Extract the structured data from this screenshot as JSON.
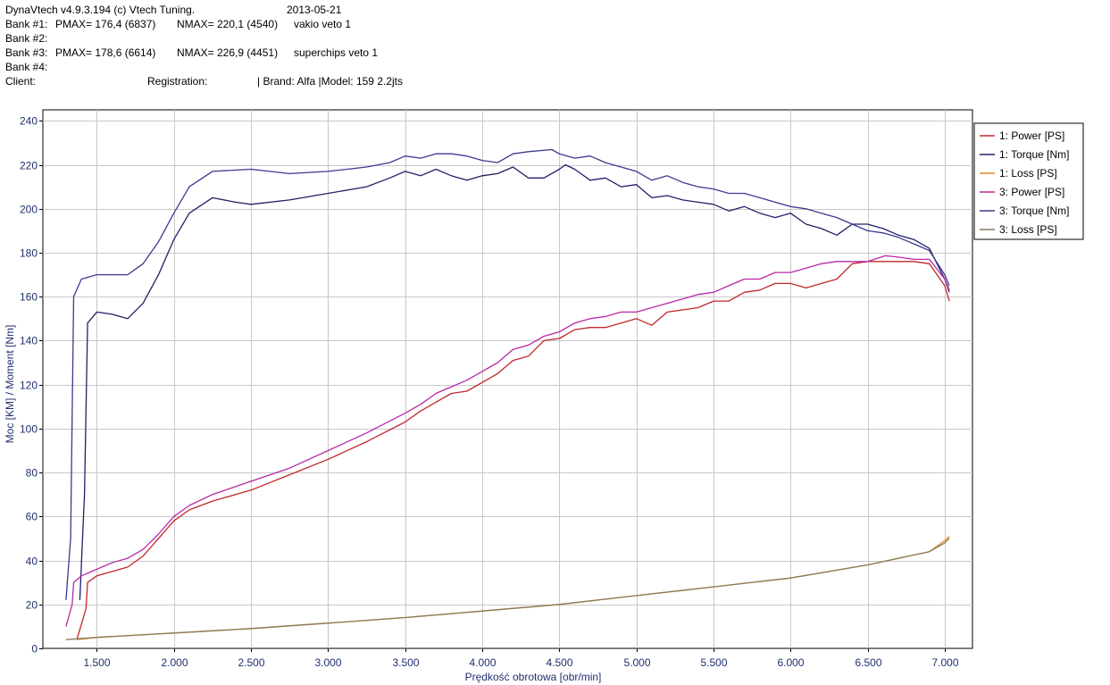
{
  "header": {
    "app": "DynaVtech v4.9.3.194 (c) Vtech Tuning.",
    "date": "2013-05-21",
    "bank1_label": "Bank #1:",
    "bank1_pmax": "PMAX= 176,4 (6837)",
    "bank1_nmax": "NMAX= 220,1 (4540)",
    "bank1_desc": "vakio veto 1",
    "bank2_label": "Bank #2:",
    "bank3_label": "Bank #3:",
    "bank3_pmax": "PMAX= 178,6 (6614)",
    "bank3_nmax": "NMAX= 226,9 (4451)",
    "bank3_desc": "superchips veto 1",
    "bank4_label": "Bank #4:",
    "client": "Client:",
    "registration": "Registration:",
    "brand_model": "| Brand: Alfa |Model: 159 2.2jts"
  },
  "chart_data": {
    "type": "line",
    "xlabel": "Prędkość obrotowa [obr/min]",
    "ylabel": "Moc [KM] / Moment [Nm]",
    "xlim": [
      1150,
      7180
    ],
    "ylim": [
      0,
      245
    ],
    "xticks": [
      1500,
      2000,
      2500,
      3000,
      3500,
      4000,
      4500,
      5000,
      5500,
      6000,
      6500,
      7000
    ],
    "xtick_labels": [
      "1.500",
      "2.000",
      "2.500",
      "3.000",
      "3.500",
      "4.000",
      "4.500",
      "5.000",
      "5.500",
      "6.000",
      "6.500",
      "7.000"
    ],
    "yticks": [
      0,
      20,
      40,
      60,
      80,
      100,
      120,
      140,
      160,
      180,
      200,
      220,
      240
    ],
    "ytick_labels": [
      "0",
      "20",
      "40",
      "60",
      "80",
      "100",
      "120",
      "140",
      "160",
      "180",
      "200",
      "220",
      "240"
    ],
    "grid": true,
    "legend_position": "right",
    "series": [
      {
        "name": "1: Power [PS]",
        "color": "#c0282a",
        "points": [
          [
            1370,
            4
          ],
          [
            1430,
            18
          ],
          [
            1440,
            30
          ],
          [
            1500,
            33
          ],
          [
            1600,
            35
          ],
          [
            1700,
            37
          ],
          [
            1800,
            42
          ],
          [
            1900,
            50
          ],
          [
            2000,
            58
          ],
          [
            2100,
            63
          ],
          [
            2250,
            67
          ],
          [
            2500,
            72
          ],
          [
            2750,
            79
          ],
          [
            3000,
            86
          ],
          [
            3250,
            94
          ],
          [
            3500,
            103
          ],
          [
            3600,
            108
          ],
          [
            3700,
            112
          ],
          [
            3800,
            116
          ],
          [
            3900,
            117
          ],
          [
            4000,
            121
          ],
          [
            4100,
            125
          ],
          [
            4200,
            131
          ],
          [
            4300,
            133
          ],
          [
            4400,
            140
          ],
          [
            4500,
            141
          ],
          [
            4600,
            145
          ],
          [
            4700,
            146
          ],
          [
            4800,
            146
          ],
          [
            4900,
            148
          ],
          [
            5000,
            150
          ],
          [
            5100,
            147
          ],
          [
            5200,
            153
          ],
          [
            5300,
            154
          ],
          [
            5400,
            155
          ],
          [
            5500,
            158
          ],
          [
            5600,
            158
          ],
          [
            5700,
            162
          ],
          [
            5800,
            163
          ],
          [
            5900,
            166
          ],
          [
            6000,
            166
          ],
          [
            6100,
            164
          ],
          [
            6200,
            166
          ],
          [
            6300,
            168
          ],
          [
            6400,
            175
          ],
          [
            6500,
            176
          ],
          [
            6600,
            176
          ],
          [
            6700,
            176
          ],
          [
            6800,
            176
          ],
          [
            6900,
            175
          ],
          [
            7000,
            165
          ],
          [
            7030,
            158
          ]
        ]
      },
      {
        "name": "1: Torque [Nm]",
        "color": "#20206a",
        "points": [
          [
            1390,
            22
          ],
          [
            1420,
            70
          ],
          [
            1440,
            148
          ],
          [
            1500,
            153
          ],
          [
            1600,
            152
          ],
          [
            1700,
            150
          ],
          [
            1800,
            157
          ],
          [
            1900,
            170
          ],
          [
            2000,
            186
          ],
          [
            2100,
            198
          ],
          [
            2250,
            205
          ],
          [
            2400,
            203
          ],
          [
            2500,
            202
          ],
          [
            2750,
            204
          ],
          [
            3000,
            207
          ],
          [
            3250,
            210
          ],
          [
            3400,
            214
          ],
          [
            3500,
            217
          ],
          [
            3600,
            215
          ],
          [
            3700,
            218
          ],
          [
            3800,
            215
          ],
          [
            3900,
            213
          ],
          [
            4000,
            215
          ],
          [
            4100,
            216
          ],
          [
            4200,
            219
          ],
          [
            4300,
            214
          ],
          [
            4400,
            214
          ],
          [
            4500,
            218
          ],
          [
            4540,
            220
          ],
          [
            4600,
            218
          ],
          [
            4700,
            213
          ],
          [
            4800,
            214
          ],
          [
            4900,
            210
          ],
          [
            5000,
            211
          ],
          [
            5100,
            205
          ],
          [
            5200,
            206
          ],
          [
            5300,
            204
          ],
          [
            5400,
            203
          ],
          [
            5500,
            202
          ],
          [
            5600,
            199
          ],
          [
            5700,
            201
          ],
          [
            5800,
            198
          ],
          [
            5900,
            196
          ],
          [
            6000,
            198
          ],
          [
            6100,
            193
          ],
          [
            6200,
            191
          ],
          [
            6300,
            188
          ],
          [
            6400,
            193
          ],
          [
            6500,
            193
          ],
          [
            6600,
            191
          ],
          [
            6700,
            188
          ],
          [
            6800,
            186
          ],
          [
            6900,
            182
          ],
          [
            7000,
            168
          ],
          [
            7030,
            162
          ]
        ]
      },
      {
        "name": "1: Loss [PS]",
        "color": "#e08a2a",
        "points": [
          [
            1370,
            4
          ],
          [
            1500,
            5
          ],
          [
            2000,
            7
          ],
          [
            2500,
            9
          ],
          [
            3000,
            11.5
          ],
          [
            3500,
            14
          ],
          [
            4000,
            17
          ],
          [
            4500,
            20
          ],
          [
            5000,
            24
          ],
          [
            5500,
            28
          ],
          [
            6000,
            32
          ],
          [
            6500,
            38
          ],
          [
            6900,
            44
          ],
          [
            7000,
            49
          ],
          [
            7030,
            51
          ]
        ]
      },
      {
        "name": "3: Power [PS]",
        "color": "#b828a8",
        "points": [
          [
            1300,
            10
          ],
          [
            1340,
            20
          ],
          [
            1350,
            30
          ],
          [
            1400,
            33
          ],
          [
            1500,
            36
          ],
          [
            1600,
            39
          ],
          [
            1700,
            41
          ],
          [
            1800,
            45
          ],
          [
            1900,
            52
          ],
          [
            2000,
            60
          ],
          [
            2100,
            65
          ],
          [
            2250,
            70
          ],
          [
            2500,
            76
          ],
          [
            2750,
            82
          ],
          [
            3000,
            90
          ],
          [
            3250,
            98
          ],
          [
            3500,
            107
          ],
          [
            3600,
            111
          ],
          [
            3700,
            116
          ],
          [
            3800,
            119
          ],
          [
            3900,
            122
          ],
          [
            4000,
            126
          ],
          [
            4100,
            130
          ],
          [
            4200,
            136
          ],
          [
            4300,
            138
          ],
          [
            4400,
            142
          ],
          [
            4500,
            144
          ],
          [
            4600,
            148
          ],
          [
            4700,
            150
          ],
          [
            4800,
            151
          ],
          [
            4900,
            153
          ],
          [
            5000,
            153
          ],
          [
            5100,
            155
          ],
          [
            5200,
            157
          ],
          [
            5300,
            159
          ],
          [
            5400,
            161
          ],
          [
            5500,
            162
          ],
          [
            5600,
            165
          ],
          [
            5700,
            168
          ],
          [
            5800,
            168
          ],
          [
            5900,
            171
          ],
          [
            6000,
            171
          ],
          [
            6100,
            173
          ],
          [
            6200,
            175
          ],
          [
            6300,
            176
          ],
          [
            6400,
            176
          ],
          [
            6500,
            176
          ],
          [
            6614,
            178.6
          ],
          [
            6700,
            178
          ],
          [
            6800,
            177
          ],
          [
            6900,
            177
          ],
          [
            7000,
            168
          ],
          [
            7030,
            163
          ]
        ]
      },
      {
        "name": "3: Torque [Nm]",
        "color": "#3a3a90",
        "points": [
          [
            1300,
            22
          ],
          [
            1330,
            50
          ],
          [
            1350,
            160
          ],
          [
            1400,
            168
          ],
          [
            1500,
            170
          ],
          [
            1600,
            170
          ],
          [
            1700,
            170
          ],
          [
            1800,
            175
          ],
          [
            1900,
            185
          ],
          [
            2000,
            198
          ],
          [
            2100,
            210
          ],
          [
            2250,
            217
          ],
          [
            2500,
            218
          ],
          [
            2750,
            216
          ],
          [
            3000,
            217
          ],
          [
            3250,
            219
          ],
          [
            3400,
            221
          ],
          [
            3500,
            224
          ],
          [
            3600,
            223
          ],
          [
            3700,
            225
          ],
          [
            3800,
            225
          ],
          [
            3900,
            224
          ],
          [
            4000,
            222
          ],
          [
            4100,
            221
          ],
          [
            4200,
            225
          ],
          [
            4300,
            226
          ],
          [
            4451,
            226.9
          ],
          [
            4500,
            225
          ],
          [
            4600,
            223
          ],
          [
            4700,
            224
          ],
          [
            4800,
            221
          ],
          [
            4900,
            219
          ],
          [
            5000,
            217
          ],
          [
            5100,
            213
          ],
          [
            5200,
            215
          ],
          [
            5300,
            212
          ],
          [
            5400,
            210
          ],
          [
            5500,
            209
          ],
          [
            5600,
            207
          ],
          [
            5700,
            207
          ],
          [
            5800,
            205
          ],
          [
            5900,
            203
          ],
          [
            6000,
            201
          ],
          [
            6100,
            200
          ],
          [
            6200,
            198
          ],
          [
            6300,
            196
          ],
          [
            6400,
            193
          ],
          [
            6500,
            190
          ],
          [
            6600,
            189
          ],
          [
            6700,
            187
          ],
          [
            6800,
            184
          ],
          [
            6900,
            181
          ],
          [
            7000,
            170
          ],
          [
            7030,
            165
          ]
        ]
      },
      {
        "name": "3: Loss [PS]",
        "color": "#8a7a5a",
        "points": [
          [
            1300,
            4
          ],
          [
            1500,
            5
          ],
          [
            2000,
            7
          ],
          [
            2500,
            9
          ],
          [
            3000,
            11.5
          ],
          [
            3500,
            14
          ],
          [
            4000,
            17
          ],
          [
            4500,
            20
          ],
          [
            5000,
            24
          ],
          [
            5500,
            28
          ],
          [
            6000,
            32
          ],
          [
            6500,
            38
          ],
          [
            6900,
            44
          ],
          [
            7000,
            48
          ],
          [
            7030,
            50
          ]
        ]
      }
    ]
  }
}
